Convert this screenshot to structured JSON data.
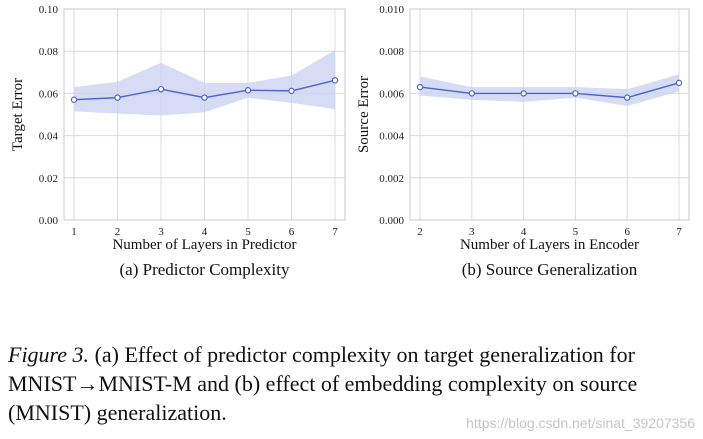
{
  "chart_data": [
    {
      "type": "line",
      "title": "(a) Predictor Complexity",
      "xlabel": "Number of Layers in Predictor",
      "ylabel": "Target Error",
      "x": [
        1,
        2,
        3,
        4,
        5,
        6,
        7
      ],
      "xticks": [
        "1",
        "2",
        "3",
        "4",
        "5",
        "6",
        "7"
      ],
      "yticks": [
        "0.00",
        "0.02",
        "0.04",
        "0.06",
        "0.08",
        "0.10"
      ],
      "ylim": [
        0,
        0.1
      ],
      "grid": true,
      "series": [
        {
          "name": "Target Error",
          "values": [
            0.057,
            0.058,
            0.062,
            0.058,
            0.0615,
            0.0612,
            0.0662
          ],
          "lower": [
            0.0515,
            0.0505,
            0.0495,
            0.051,
            0.058,
            0.0555,
            0.0525
          ],
          "upper": [
            0.063,
            0.0655,
            0.0745,
            0.065,
            0.065,
            0.0685,
            0.0805
          ]
        }
      ]
    },
    {
      "type": "line",
      "title": "(b) Source Generalization",
      "xlabel": "Number of Layers in Encoder",
      "ylabel": "Source Error",
      "x": [
        2,
        3,
        4,
        5,
        6,
        7
      ],
      "xticks": [
        "2",
        "3",
        "4",
        "5",
        "6",
        "7"
      ],
      "yticks": [
        "0.000",
        "0.002",
        "0.004",
        "0.006",
        "0.008",
        "0.010"
      ],
      "ylim": [
        0,
        0.01
      ],
      "grid": true,
      "series": [
        {
          "name": "Source Error",
          "values": [
            0.0063,
            0.006,
            0.006,
            0.006,
            0.0058,
            0.0065
          ],
          "lower": [
            0.0059,
            0.0057,
            0.0056,
            0.0058,
            0.0054,
            0.0061
          ],
          "upper": [
            0.0068,
            0.0063,
            0.0063,
            0.0063,
            0.0062,
            0.0069
          ]
        }
      ]
    }
  ],
  "caption": {
    "label": "Figure 3.",
    "text": " (a) Effect of predictor complexity on target generalization for MNIST→MNIST-M and (b) effect of embedding complexity on source (MNIST) generalization."
  },
  "watermark": "https://blog.csdn.net/sinat_39207356",
  "colors": {
    "line": "#4a63d4",
    "band": "#c9d0f2",
    "grid": "#dcdcdc",
    "axis": "#c8c8c8"
  }
}
